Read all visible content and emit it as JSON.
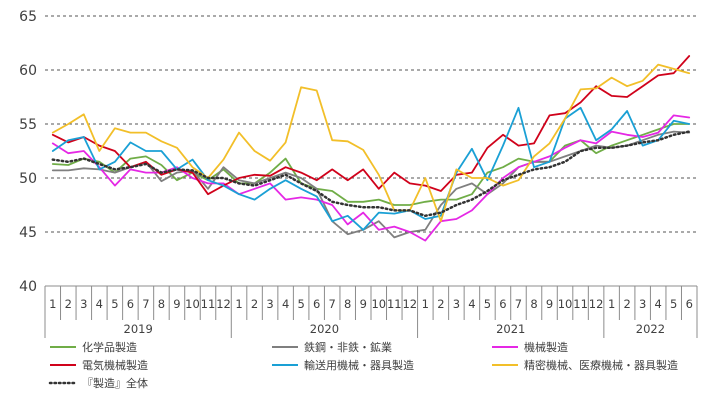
{
  "chart_data": {
    "type": "line",
    "ylim": [
      40,
      65
    ],
    "y_ticks": [
      40,
      45,
      50,
      55,
      60,
      65
    ],
    "grid": "dashed-horizontal",
    "legend_position": "bottom",
    "month_labels": [
      "1",
      "2",
      "3",
      "4",
      "5",
      "6",
      "7",
      "8",
      "9",
      "10",
      "11",
      "12",
      "1",
      "2",
      "3",
      "4",
      "5",
      "6",
      "7",
      "8",
      "9",
      "10",
      "11",
      "12",
      "1",
      "2",
      "3",
      "4",
      "5",
      "6",
      "7",
      "8",
      "9",
      "10",
      "11",
      "12",
      "1",
      "2",
      "3",
      "4",
      "5",
      "6"
    ],
    "years": [
      {
        "label": "2019",
        "start": 0,
        "count": 12
      },
      {
        "label": "2020",
        "start": 12,
        "count": 12
      },
      {
        "label": "2021",
        "start": 24,
        "count": 12
      },
      {
        "label": "2022",
        "start": 36,
        "count": 6
      }
    ],
    "series": [
      {
        "key": "chem",
        "name": "化学品製造",
        "color": "#70ad47",
        "dash": "solid",
        "values": [
          51.3,
          51.2,
          51.8,
          51.5,
          50.5,
          51.8,
          52.0,
          51.2,
          49.8,
          50.5,
          49.8,
          50.8,
          49.5,
          49.5,
          50.5,
          51.8,
          49.5,
          49.0,
          48.8,
          47.8,
          47.8,
          48.0,
          47.5,
          47.5,
          47.8,
          48.0,
          48.0,
          48.5,
          50.5,
          51.0,
          51.8,
          51.5,
          51.5,
          53.0,
          53.5,
          52.3,
          53.0,
          53.5,
          54.0,
          54.5,
          55.0,
          55.0
        ]
      },
      {
        "key": "steel",
        "name": "鉄鋼・非鉄・鉱業",
        "color": "#7f7f7f",
        "dash": "solid",
        "values": [
          50.7,
          50.7,
          50.9,
          50.8,
          50.5,
          51.0,
          51.5,
          49.7,
          50.5,
          50.7,
          49.0,
          51.0,
          49.8,
          49.5,
          50.0,
          50.5,
          50.0,
          49.0,
          46.0,
          44.8,
          45.2,
          46.0,
          44.5,
          45.0,
          45.2,
          47.5,
          49.0,
          49.5,
          48.5,
          49.5,
          51.0,
          51.5,
          51.5,
          52.0,
          52.5,
          53.0,
          52.8,
          53.0,
          53.5,
          54.0,
          54.3,
          54.2
        ]
      },
      {
        "key": "machine",
        "name": "機械製造",
        "color": "#e528e5",
        "dash": "solid",
        "values": [
          53.2,
          52.3,
          52.5,
          51.0,
          49.3,
          50.8,
          50.5,
          50.5,
          51.0,
          50.0,
          49.5,
          49.5,
          48.5,
          49.0,
          49.5,
          48.0,
          48.2,
          48.0,
          47.5,
          45.7,
          46.8,
          45.2,
          45.5,
          45.0,
          44.2,
          46.0,
          46.2,
          47.0,
          48.5,
          50.0,
          51.0,
          51.5,
          52.0,
          52.8,
          53.5,
          53.2,
          54.3,
          54.0,
          53.8,
          54.2,
          55.8,
          55.6
        ]
      },
      {
        "key": "elec",
        "name": "電気機械製造",
        "color": "#d0021b",
        "dash": "solid",
        "values": [
          54.0,
          53.3,
          53.8,
          53.0,
          52.5,
          51.0,
          51.5,
          50.3,
          50.8,
          50.5,
          48.5,
          49.3,
          50.0,
          50.3,
          50.2,
          51.0,
          50.5,
          49.8,
          50.8,
          49.8,
          50.8,
          49.0,
          50.5,
          49.5,
          49.3,
          48.8,
          50.3,
          50.5,
          52.8,
          54.0,
          53.0,
          53.2,
          55.8,
          56.0,
          57.0,
          58.5,
          57.6,
          57.5,
          58.5,
          59.5,
          59.7,
          61.3
        ]
      },
      {
        "key": "transport",
        "name": "輸送用機械・器具製造",
        "color": "#1aa0d5",
        "dash": "solid",
        "values": [
          52.5,
          53.5,
          53.8,
          50.8,
          51.5,
          53.3,
          52.5,
          52.5,
          50.8,
          51.7,
          49.8,
          49.3,
          48.5,
          48.0,
          49.0,
          49.8,
          49.0,
          48.3,
          46.0,
          46.5,
          45.2,
          46.8,
          46.7,
          47.0,
          46.2,
          46.5,
          50.5,
          52.7,
          49.8,
          53.0,
          56.5,
          51.0,
          51.5,
          55.5,
          56.5,
          53.5,
          54.5,
          56.2,
          53.0,
          53.5,
          55.3,
          55.0
        ]
      },
      {
        "key": "precision",
        "name": "精密機械、医療機械・器具製造",
        "color": "#f2bf29",
        "dash": "solid",
        "values": [
          54.2,
          55.0,
          55.9,
          52.5,
          54.6,
          54.2,
          54.2,
          53.4,
          52.8,
          51.0,
          50.0,
          51.7,
          54.2,
          52.5,
          51.6,
          53.3,
          58.4,
          58.1,
          53.5,
          53.4,
          52.6,
          50.3,
          47.0,
          47.0,
          50.0,
          46.0,
          50.8,
          50.0,
          50.0,
          49.3,
          49.8,
          52.0,
          53.2,
          55.5,
          58.2,
          58.3,
          59.3,
          58.5,
          59.0,
          60.5,
          60.1,
          59.7
        ]
      },
      {
        "key": "overall",
        "name": "『製造』全体",
        "color": "#333333",
        "dash": "dotted",
        "values": [
          51.7,
          51.5,
          51.8,
          51.3,
          50.8,
          51.0,
          51.3,
          50.5,
          50.8,
          50.7,
          50.0,
          50.0,
          49.5,
          49.3,
          49.8,
          50.3,
          49.5,
          48.8,
          47.8,
          47.5,
          47.3,
          47.3,
          47.0,
          47.0,
          46.5,
          46.8,
          47.5,
          48.0,
          48.8,
          49.8,
          50.3,
          50.8,
          51.0,
          51.5,
          52.5,
          52.8,
          52.8,
          53.0,
          53.3,
          53.5,
          54.0,
          54.3
        ]
      }
    ]
  }
}
